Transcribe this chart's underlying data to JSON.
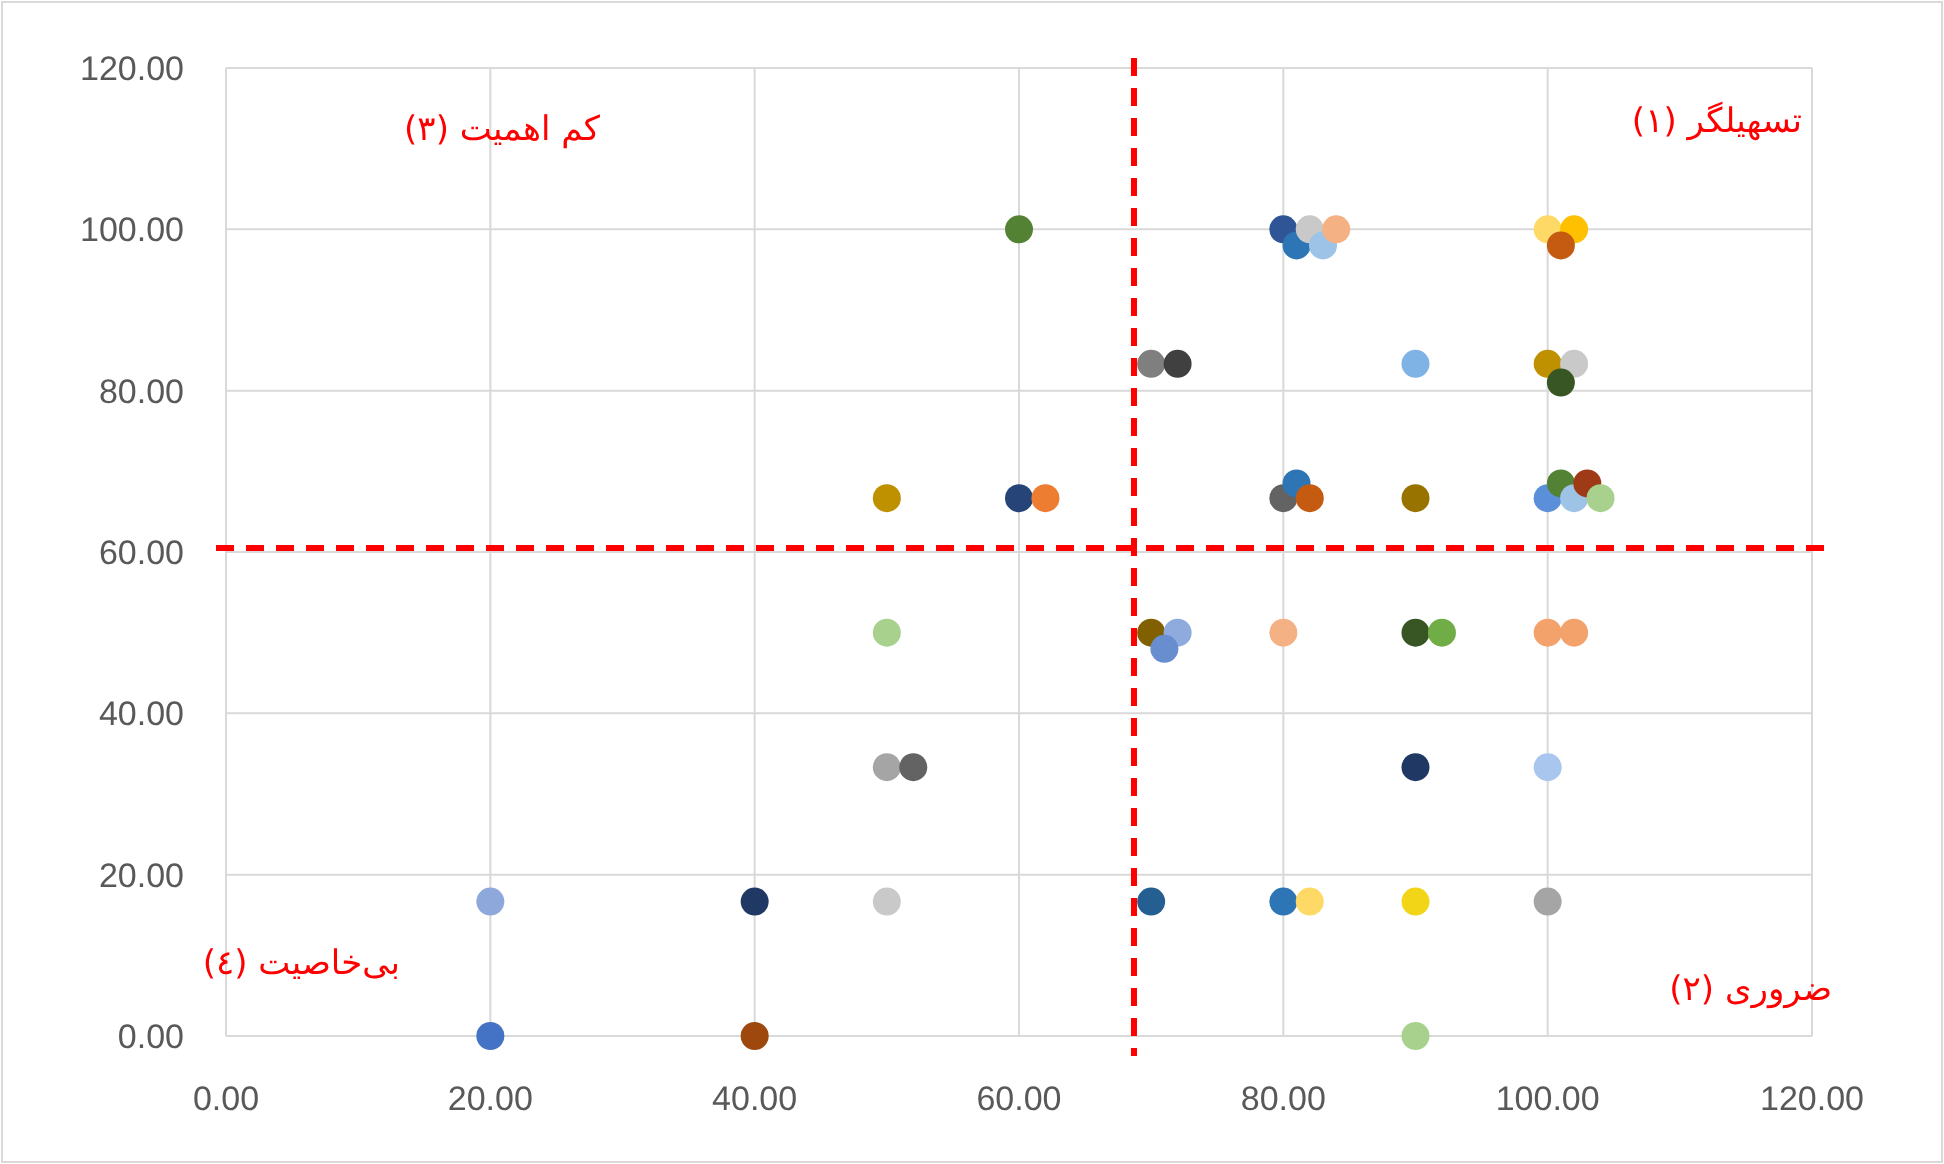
{
  "chart_data": {
    "type": "scatter",
    "marker": "circle",
    "grid": true,
    "x": [
      20,
      20,
      40,
      40,
      50,
      50,
      52,
      50,
      50,
      60,
      62,
      60,
      70,
      72,
      70,
      72,
      71,
      70,
      80,
      81,
      82,
      83,
      84,
      80,
      81,
      82,
      80,
      80,
      82,
      90,
      90,
      90,
      92,
      90,
      90,
      90,
      100,
      102,
      101,
      100,
      102,
      101,
      100,
      101,
      102,
      103,
      104,
      100,
      102,
      100,
      100
    ],
    "values": [
      16.67,
      0,
      16.67,
      0,
      16.67,
      33.33,
      33.33,
      50,
      66.67,
      66.67,
      66.67,
      100,
      83.33,
      83.33,
      50,
      50,
      48,
      16.67,
      100,
      98,
      100,
      98,
      100,
      66.67,
      68.5,
      66.67,
      50,
      16.67,
      16.67,
      83.33,
      66.67,
      50,
      50,
      33.33,
      16.67,
      0,
      100,
      100,
      98,
      83.33,
      83.33,
      81,
      66.67,
      68.5,
      66.67,
      68.5,
      66.67,
      50,
      50,
      33.33,
      16.67
    ],
    "colors": [
      "#8fa8dc",
      "#4472c4",
      "#1f3864",
      "#9e480e",
      "#c9c9c9",
      "#a5a5a5",
      "#636363",
      "#a9d18e",
      "#bf9000",
      "#264478",
      "#ed7d31",
      "#548235",
      "#7f7f7f",
      "#404040",
      "#806000",
      "#8faadc",
      "#698ed0",
      "#255e91",
      "#2f5597",
      "#2e75b6",
      "#c9c9c9",
      "#9dc3e6",
      "#f4b183",
      "#636363",
      "#2e75b6",
      "#c55a11",
      "#f4b183",
      "#2e75b6",
      "#ffd966",
      "#7fb2e5",
      "#997300",
      "#375623",
      "#70ad47",
      "#203864",
      "#f2d516",
      "#a9d18e",
      "#ffd966",
      "#ffc000",
      "#c55a11",
      "#bf9000",
      "#c9c9c9",
      "#375623",
      "#5b8fd9",
      "#548235",
      "#9dc3e6",
      "#9e3a16",
      "#a9d18e",
      "#f4a26b",
      "#f4a26b",
      "#a9c6ee",
      "#a5a5a5"
    ],
    "xlim": [
      0,
      120
    ],
    "ylim": [
      0,
      120
    ],
    "xticks": [
      {
        "value": 0,
        "label": "0.00"
      },
      {
        "value": 20,
        "label": "20.00"
      },
      {
        "value": 40,
        "label": "40.00"
      },
      {
        "value": 60,
        "label": "60.00"
      },
      {
        "value": 80,
        "label": "80.00"
      },
      {
        "value": 100,
        "label": "100.00"
      },
      {
        "value": 120,
        "label": "120.00"
      }
    ],
    "yticks": [
      {
        "value": 0,
        "label": "0.00"
      },
      {
        "value": 20,
        "label": "20.00"
      },
      {
        "value": 40,
        "label": "40.00"
      },
      {
        "value": 60,
        "label": "60.00"
      },
      {
        "value": 80,
        "label": "80.00"
      },
      {
        "value": 100,
        "label": "100.00"
      },
      {
        "value": 120,
        "label": "120.00"
      }
    ],
    "ref_lines": [
      {
        "axis": "x",
        "value": 68.7,
        "color": "#ff0000",
        "line_style": "dashed"
      },
      {
        "axis": "y",
        "value": 60.5,
        "color": "#ff0000",
        "line_style": "dashed"
      }
    ],
    "annotations": [
      "تسهیلگر (۱)",
      "ضروری (۲)",
      "کم اهمیت (۳)",
      "بی‌خاصیت (٤)"
    ]
  }
}
